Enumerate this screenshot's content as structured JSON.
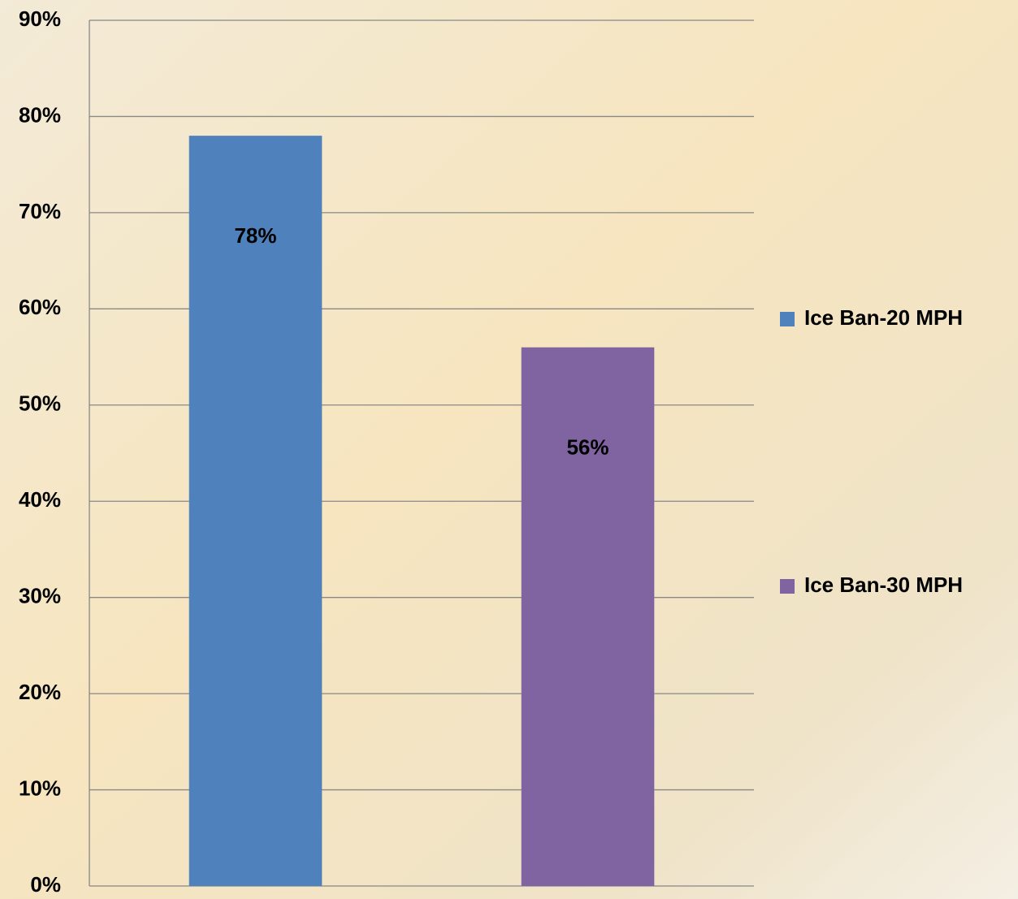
{
  "chart_data": {
    "type": "bar",
    "categories": [
      null
    ],
    "series": [
      {
        "name": "Ice Ban-20 MPH",
        "color": "#4f81bd",
        "values": [
          78
        ],
        "value_labels": [
          "78%"
        ]
      },
      {
        "name": "Ice Ban-30 MPH",
        "color": "#8064a2",
        "values": [
          56
        ],
        "value_labels": [
          "56%"
        ]
      }
    ],
    "ylim": [
      0,
      90
    ],
    "yticks": [
      {
        "value": 0,
        "label": "0%"
      },
      {
        "value": 10,
        "label": "10%"
      },
      {
        "value": 20,
        "label": "20%"
      },
      {
        "value": 30,
        "label": "30%"
      },
      {
        "value": 40,
        "label": "40%"
      },
      {
        "value": 50,
        "label": "50%"
      },
      {
        "value": 60,
        "label": "60%"
      },
      {
        "value": 70,
        "label": "70%"
      },
      {
        "value": 80,
        "label": "80%"
      },
      {
        "value": 90,
        "label": "90%"
      }
    ],
    "grid": true,
    "legend": "right"
  }
}
